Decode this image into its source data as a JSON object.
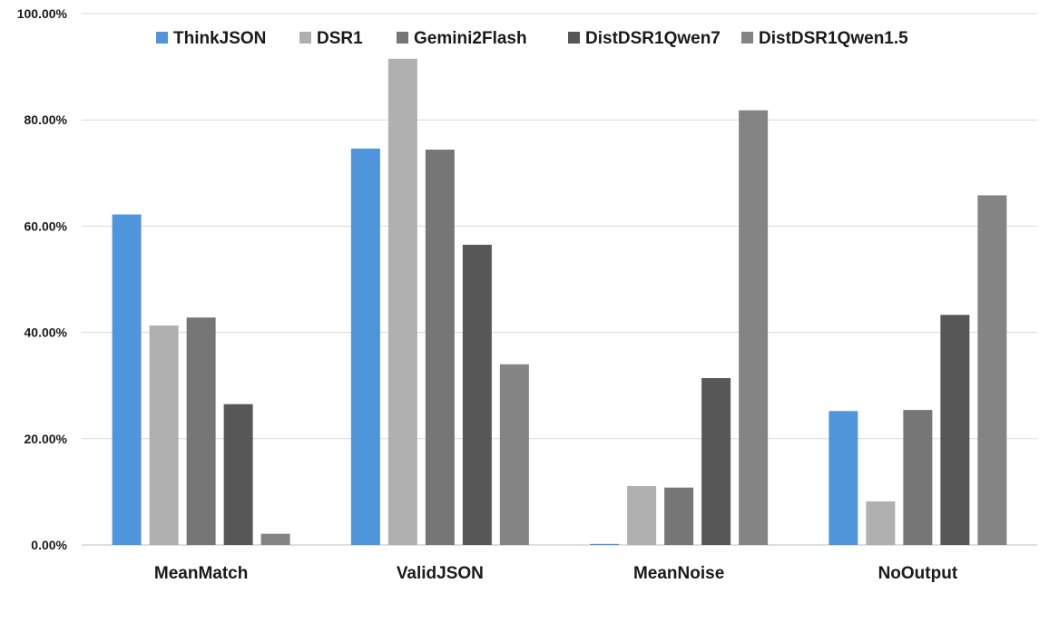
{
  "chart_data": {
    "type": "bar",
    "title": "",
    "xlabel": "",
    "ylabel": "",
    "ylim": [
      0,
      100
    ],
    "y_tick_values": [
      0,
      20,
      40,
      60,
      80,
      100
    ],
    "y_tick_labels": [
      "0.00%",
      "20.00%",
      "40.00%",
      "60.00%",
      "80.00%",
      "100.00%"
    ],
    "grid": true,
    "legend_position": "top",
    "categories": [
      "MeanMatch",
      "ValidJSON",
      "MeanNoise",
      "NoOutput"
    ],
    "series": [
      {
        "name": "ThinkJSON",
        "color": "#4f95dc",
        "values": [
          62.2,
          74.6,
          0.2,
          25.2
        ]
      },
      {
        "name": "DSR1",
        "color": "#b0b0b0",
        "values": [
          41.3,
          91.5,
          11.1,
          8.2
        ]
      },
      {
        "name": "Gemini2Flash",
        "color": "#767676",
        "values": [
          42.8,
          74.4,
          10.8,
          25.4
        ]
      },
      {
        "name": "DistDSR1Qwen7",
        "color": "#575757",
        "values": [
          26.5,
          56.5,
          31.4,
          43.3
        ]
      },
      {
        "name": "DistDSR1Qwen1.5",
        "color": "#848484",
        "values": [
          2.1,
          34.0,
          81.8,
          65.8
        ]
      }
    ]
  }
}
